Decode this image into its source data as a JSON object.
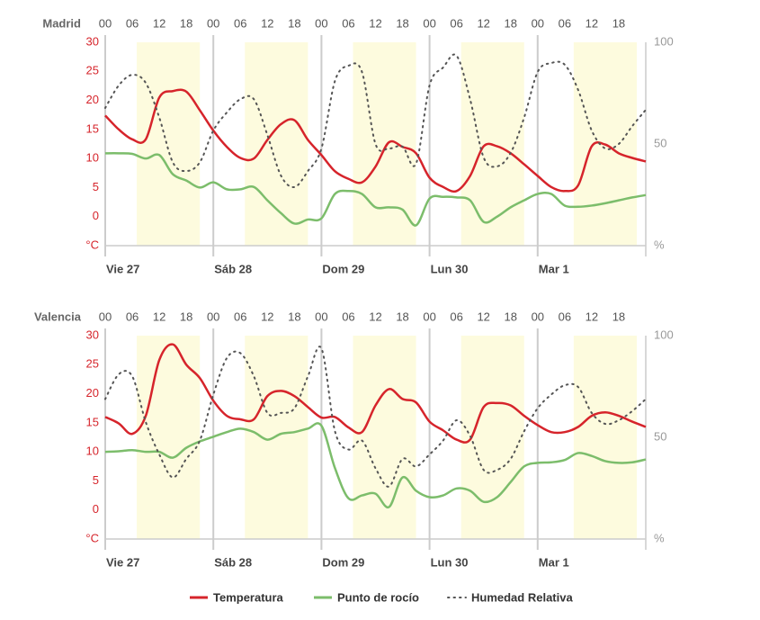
{
  "chart_data": [
    {
      "type": "line",
      "title": "Madrid",
      "x": [
        0,
        3,
        6,
        9,
        12,
        15,
        18,
        21,
        24,
        27,
        30,
        33,
        36,
        39,
        42,
        45,
        48,
        51,
        54,
        57,
        60,
        63,
        66,
        69,
        72,
        75,
        78,
        81,
        84,
        87,
        90,
        93,
        96,
        99,
        102,
        105,
        108,
        111,
        114,
        117,
        120
      ],
      "series": [
        {
          "name": "Temperatura",
          "color": "#d6242b",
          "values": [
            17.4,
            15,
            13.3,
            13.3,
            20.5,
            21.6,
            21.5,
            18.3,
            14.8,
            12,
            10.1,
            10,
            13.2,
            15.9,
            16.6,
            13.2,
            10.6,
            7.8,
            6.5,
            5.9,
            8.6,
            12.8,
            12,
            10.9,
            6.7,
            5.1,
            4.4,
            7,
            12.1,
            12.1,
            10.9,
            9,
            7,
            5.1,
            4.4,
            5.4,
            12.1,
            12.4,
            10.9,
            10.1,
            9.5
          ]
        },
        {
          "name": "Punto de rocío",
          "color": "#7cbd6b",
          "values": [
            10.9,
            10.9,
            10.8,
            10,
            10.6,
            7.3,
            6.2,
            5,
            5.9,
            4.7,
            4.7,
            5.1,
            2.8,
            0.6,
            -1.2,
            -0.5,
            -0.3,
            3.9,
            4.4,
            3.9,
            1.6,
            1.6,
            1.2,
            -1.5,
            3.1,
            3.4,
            3.3,
            2.8,
            -0.9,
            0,
            1.6,
            2.8,
            3.9,
            3.9,
            1.9,
            1.7,
            1.9,
            2.3,
            2.8,
            3.3,
            3.7
          ]
        },
        {
          "name": "Humedad Relativa",
          "color": "#555555",
          "dashed": true,
          "axis": "y2",
          "values": [
            67.7,
            78.8,
            84,
            80,
            63,
            41,
            36.7,
            41,
            56.6,
            65.5,
            72,
            72,
            54.4,
            34.5,
            28.8,
            36.7,
            47.8,
            81,
            88.5,
            85.4,
            50,
            47.8,
            48.7,
            40.3,
            78.8,
            87.6,
            93.4,
            72,
            43.4,
            39,
            45.6,
            63,
            85.4,
            89.8,
            89,
            76.5,
            56.6,
            47.8,
            50,
            58.8,
            66.8
          ]
        }
      ],
      "xlim": [
        0,
        120
      ],
      "xticks": [
        {
          "value": 0,
          "label": "00"
        },
        {
          "value": 6,
          "label": "06"
        },
        {
          "value": 12,
          "label": "12"
        },
        {
          "value": 18,
          "label": "18"
        },
        {
          "value": 24,
          "label": "00"
        },
        {
          "value": 30,
          "label": "06"
        },
        {
          "value": 36,
          "label": "12"
        },
        {
          "value": 42,
          "label": "18"
        },
        {
          "value": 48,
          "label": "00"
        },
        {
          "value": 54,
          "label": "06"
        },
        {
          "value": 60,
          "label": "12"
        },
        {
          "value": 66,
          "label": "18"
        },
        {
          "value": 72,
          "label": "00"
        },
        {
          "value": 78,
          "label": "06"
        },
        {
          "value": 84,
          "label": "12"
        },
        {
          "value": 90,
          "label": "18"
        },
        {
          "value": 96,
          "label": "00"
        },
        {
          "value": 102,
          "label": "06"
        },
        {
          "value": 108,
          "label": "12"
        },
        {
          "value": 114,
          "label": "18"
        }
      ],
      "day_ticks": [
        {
          "value": 0,
          "label": "Vie 27"
        },
        {
          "value": 24,
          "label": "Sáb 28"
        },
        {
          "value": 48,
          "label": "Dom 29"
        },
        {
          "value": 72,
          "label": "Lun 30"
        },
        {
          "value": 96,
          "label": "Mar 1"
        }
      ],
      "shaded_ranges": [
        [
          7,
          21
        ],
        [
          31,
          45
        ],
        [
          55,
          69
        ],
        [
          79,
          93
        ],
        [
          104,
          118
        ]
      ],
      "ylim": [
        -5,
        30
      ],
      "yticks": [
        {
          "value": -5,
          "label": "°C"
        },
        0,
        5,
        10,
        15,
        20,
        25,
        30
      ],
      "y2lim": [
        0,
        100
      ],
      "y2ticks": [
        {
          "value": 0,
          "label": "%"
        },
        50,
        100
      ]
    },
    {
      "type": "line",
      "title": "Valencia",
      "x": [
        0,
        3,
        6,
        9,
        12,
        15,
        18,
        21,
        24,
        27,
        30,
        33,
        36,
        39,
        42,
        45,
        48,
        51,
        54,
        57,
        60,
        63,
        66,
        69,
        72,
        75,
        78,
        81,
        84,
        87,
        90,
        93,
        96,
        99,
        102,
        105,
        108,
        111,
        114,
        117,
        120
      ],
      "series": [
        {
          "color": "#d6242b",
          "values": [
            16,
            14.9,
            13.1,
            16.2,
            25.8,
            28.5,
            25,
            22.7,
            18.8,
            16.2,
            15.6,
            15.6,
            19.6,
            20.5,
            19.6,
            17.7,
            15.9,
            16,
            14.2,
            13.4,
            18,
            20.8,
            19.1,
            18.5,
            15.2,
            13.7,
            12.1,
            12.1,
            17.7,
            18.4,
            18,
            16.2,
            14.6,
            13.4,
            13.4,
            14.3,
            16.2,
            16.8,
            16.2,
            15.2,
            14.3
          ]
        },
        {
          "color": "#7cbd6b",
          "values": [
            10,
            10.1,
            10.3,
            10,
            10,
            9,
            10.7,
            11.8,
            12.6,
            13.4,
            14,
            13.4,
            12.1,
            13.1,
            13.4,
            14,
            14.5,
            7.2,
            2,
            2.5,
            2.8,
            0.5,
            5.6,
            3.3,
            2.2,
            2.5,
            3.7,
            3.3,
            1.4,
            2.2,
            4.8,
            7.5,
            8.1,
            8.2,
            8.6,
            9.8,
            9.3,
            8.4,
            8.1,
            8.2,
            8.7
          ]
        },
        {
          "color": "#555555",
          "dashed": true,
          "axis": "y2",
          "values": [
            68.8,
            81,
            80,
            57.5,
            41.6,
            30.3,
            39.4,
            48.4,
            71,
            89,
            91.4,
            80,
            62,
            62,
            64.3,
            80,
            93.7,
            53,
            44,
            48.4,
            34.8,
            25.8,
            39.4,
            35.7,
            41.6,
            48.4,
            58.4,
            50.7,
            34,
            34,
            39.4,
            53,
            64.3,
            71,
            75.6,
            74.7,
            62,
            56.6,
            58.4,
            62.9,
            68.8
          ]
        }
      ],
      "xlim": [
        0,
        120
      ],
      "xticks": [
        {
          "value": 0,
          "label": "00"
        },
        {
          "value": 6,
          "label": "06"
        },
        {
          "value": 12,
          "label": "12"
        },
        {
          "value": 18,
          "label": "18"
        },
        {
          "value": 24,
          "label": "00"
        },
        {
          "value": 30,
          "label": "06"
        },
        {
          "value": 36,
          "label": "12"
        },
        {
          "value": 42,
          "label": "18"
        },
        {
          "value": 48,
          "label": "00"
        },
        {
          "value": 54,
          "label": "06"
        },
        {
          "value": 60,
          "label": "12"
        },
        {
          "value": 66,
          "label": "18"
        },
        {
          "value": 72,
          "label": "00"
        },
        {
          "value": 78,
          "label": "06"
        },
        {
          "value": 84,
          "label": "12"
        },
        {
          "value": 90,
          "label": "18"
        },
        {
          "value": 96,
          "label": "00"
        },
        {
          "value": 102,
          "label": "06"
        },
        {
          "value": 108,
          "label": "12"
        },
        {
          "value": 114,
          "label": "18"
        }
      ],
      "day_ticks": [
        {
          "value": 0,
          "label": "Vie 27"
        },
        {
          "value": 24,
          "label": "Sáb 28"
        },
        {
          "value": 48,
          "label": "Dom 29"
        },
        {
          "value": 72,
          "label": "Lun 30"
        },
        {
          "value": 96,
          "label": "Mar 1"
        }
      ],
      "shaded_ranges": [
        [
          7,
          21
        ],
        [
          31,
          45
        ],
        [
          55,
          69
        ],
        [
          79,
          93
        ],
        [
          104,
          118
        ]
      ],
      "ylim": [
        -5,
        30
      ],
      "yticks": [
        {
          "value": -5,
          "label": "°C"
        },
        0,
        5,
        10,
        15,
        20,
        25,
        30
      ],
      "y2lim": [
        0,
        100
      ],
      "y2ticks": [
        {
          "value": 0,
          "label": "%"
        },
        50,
        100
      ]
    }
  ]
}
